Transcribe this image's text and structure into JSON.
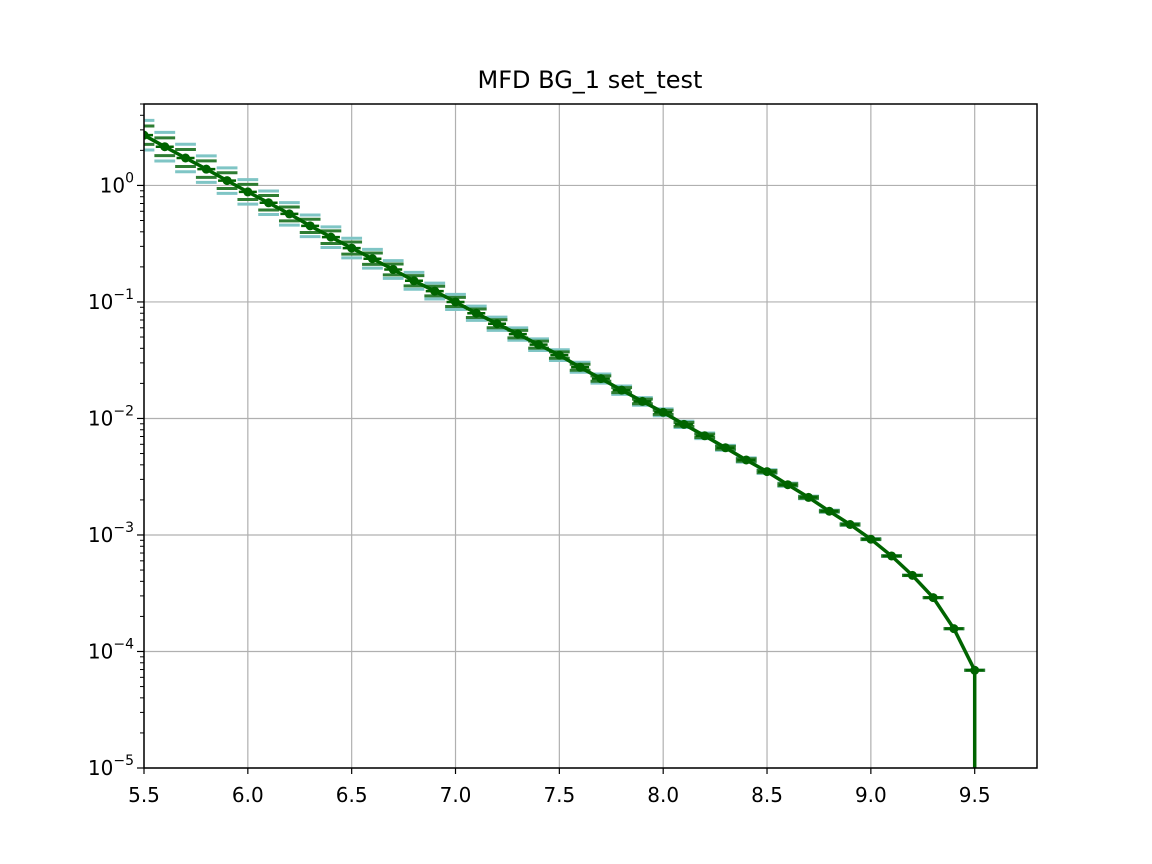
{
  "chart_data": {
    "type": "line",
    "title": "MFD BG_1 set_test",
    "xlabel": "",
    "ylabel": "",
    "xlim": [
      5.5,
      9.8
    ],
    "ylim": [
      1e-05,
      5
    ],
    "yscale": "log",
    "grid": true,
    "x_ticks": [
      "5.5",
      "6.0",
      "6.5",
      "7.0",
      "7.5",
      "8.0",
      "8.5",
      "9.0",
      "9.5"
    ],
    "y_ticks": [
      {
        "base": "10",
        "exp": "0",
        "value": 1
      },
      {
        "base": "10",
        "exp": "−1",
        "value": 0.1
      },
      {
        "base": "10",
        "exp": "−2",
        "value": 0.01
      },
      {
        "base": "10",
        "exp": "−3",
        "value": 0.001
      },
      {
        "base": "10",
        "exp": "−4",
        "value": 0.0001
      },
      {
        "base": "10",
        "exp": "−5",
        "value": 1e-05
      }
    ],
    "series": [
      {
        "color": "#006400",
        "x": [
          5.5,
          5.6,
          5.7,
          5.8,
          5.9,
          6.0,
          6.1,
          6.2,
          6.3,
          6.4,
          6.5,
          6.6,
          6.7,
          6.8,
          6.9,
          7.0,
          7.1,
          7.2,
          7.3,
          7.4,
          7.5,
          7.6,
          7.7,
          7.8,
          7.9,
          8.0,
          8.1,
          8.2,
          8.3,
          8.4,
          8.5,
          8.6,
          8.7,
          8.8,
          8.9,
          9.0,
          9.1,
          9.2,
          9.3,
          9.4,
          9.5
        ],
        "y": [
          2.7,
          2.15,
          1.72,
          1.38,
          1.1,
          0.88,
          0.71,
          0.57,
          0.45,
          0.36,
          0.29,
          0.235,
          0.19,
          0.152,
          0.124,
          0.1,
          0.08,
          0.065,
          0.053,
          0.043,
          0.035,
          0.0275,
          0.022,
          0.0175,
          0.014,
          0.0113,
          0.0089,
          0.0071,
          0.0056,
          0.0044,
          0.0035,
          0.0027,
          0.0021,
          0.0016,
          0.00123,
          0.00092,
          0.00066,
          0.00045,
          0.00029,
          0.000157,
          6.9e-05
        ]
      }
    ],
    "band_outer_color": "#7fc5c5",
    "band_inner_color": "#2e7d32"
  }
}
